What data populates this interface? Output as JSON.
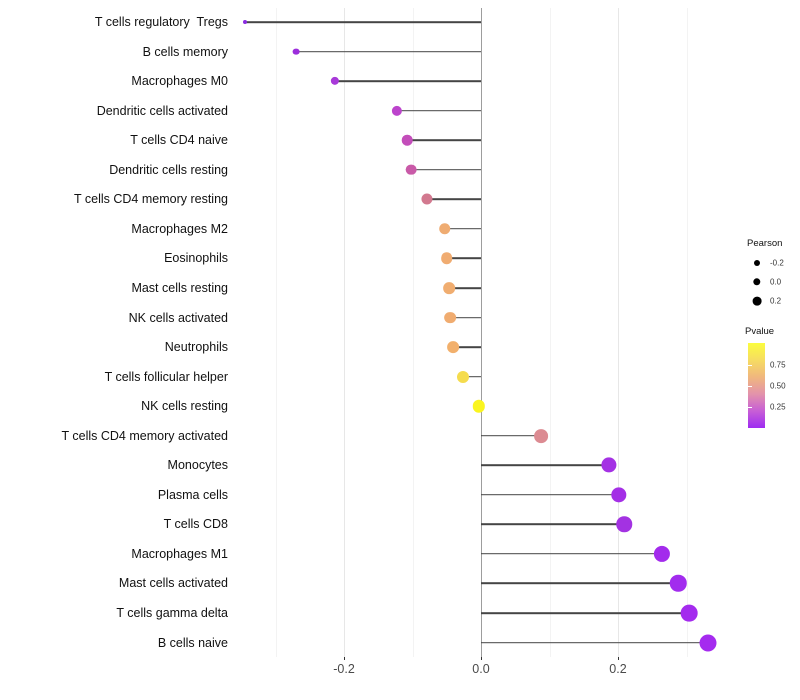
{
  "chart": {
    "background": "#ffffff",
    "x_axis": {
      "ticks": [
        {
          "label": "-0.2",
          "value": -0.2
        },
        {
          "label": "0.0",
          "value": 0.0
        },
        {
          "label": "0.2",
          "value": 0.2
        }
      ]
    },
    "legend": {
      "size": {
        "title": "Pearson",
        "entries": [
          {
            "label": "-0.2",
            "d": 6.0
          },
          {
            "label": "0.0",
            "d": 7.4
          },
          {
            "label": "0.2",
            "d": 8.8
          }
        ]
      },
      "color": {
        "title": "Pvalue",
        "tick_labels": [
          "0.75",
          "0.50",
          "0.25"
        ],
        "gradient_top_to_bottom": [
          "#FBFD3E",
          "#F6DC62",
          "#F0B77E",
          "#E393AB",
          "#C75ED6",
          "#9E2BF1"
        ]
      }
    }
  },
  "chart_data": {
    "type": "scatter",
    "subtype": "horizontal-lollipop",
    "title": "",
    "xlabel": "",
    "ylabel": "",
    "xlim": [
      -0.36,
      0.38
    ],
    "x_ticks": [
      -0.2,
      0.0,
      0.2
    ],
    "grid": true,
    "legend_position": "right",
    "size_encoding": "Pearson correlation (larger = higher value)",
    "color_encoding": "Pvalue (yellow = high p, purple = low p)",
    "categories": [
      "T cells regulatory  Tregs",
      "B cells memory",
      "Macrophages M0",
      "Dendritic cells activated",
      "T cells CD4 naive",
      "Dendritic cells resting",
      "T cells CD4 memory resting",
      "Macrophages M2",
      "Eosinophils",
      "Mast cells resting",
      "NK cells activated",
      "Neutrophils",
      "T cells follicular helper",
      "NK cells resting",
      "T cells CD4 memory activated",
      "Monocytes",
      "Plasma cells",
      "T cells CD8",
      "Macrophages M1",
      "Mast cells activated",
      "T cells gamma delta",
      "B cells naive"
    ],
    "pearson": [
      -0.344,
      -0.27,
      -0.213,
      -0.123,
      -0.108,
      -0.102,
      -0.079,
      -0.053,
      -0.05,
      -0.046,
      -0.045,
      -0.041,
      -0.026,
      -0.003,
      0.088,
      0.187,
      0.201,
      0.209,
      0.264,
      0.288,
      0.304,
      0.331
    ],
    "point_colors": [
      "#8A2BE0",
      "#9C2EDC",
      "#A839D9",
      "#BC44CC",
      "#C34DBA",
      "#C95AA8",
      "#D2798F",
      "#EFAC72",
      "#F0AC71",
      "#F0AD70",
      "#F0AC70",
      "#F2B06C",
      "#F5DC4E",
      "#FAF51F",
      "#DC8B92",
      "#A431E4",
      "#A42FE6",
      "#A332E2",
      "#A32BEC",
      "#A22CEE",
      "#A42BEE",
      "#A52BEF"
    ]
  }
}
